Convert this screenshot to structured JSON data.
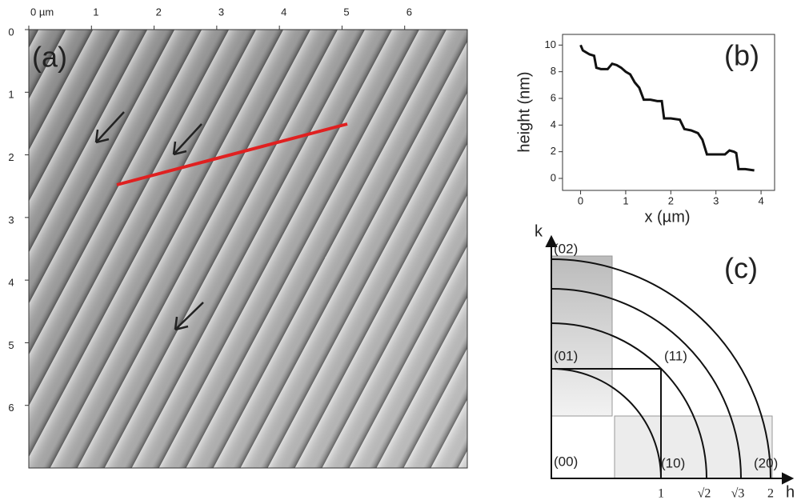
{
  "chart_data": [
    {
      "type": "image",
      "label": "(a)",
      "xlim": [
        0,
        7
      ],
      "ylim": [
        0,
        7
      ],
      "y_reversed": true,
      "xticks": [
        {
          "value": 0,
          "label": "0 µm"
        },
        1,
        2,
        3,
        4,
        5,
        6
      ],
      "yticks": [
        0,
        1,
        2,
        3,
        4,
        5,
        6
      ]
    },
    {
      "type": "line",
      "label": "(b)",
      "xlabel": "x (µm)",
      "ylabel": "height (nm)",
      "color": "#111",
      "xlim": [
        -0.4,
        4.3
      ],
      "ylim": [
        -0.9,
        10.8
      ],
      "xticks": [
        0,
        1,
        2,
        3,
        4
      ],
      "yticks": [
        0,
        2,
        4,
        6,
        8,
        10
      ],
      "x": [
        0,
        0.05,
        0.1,
        0.2,
        0.3,
        0.35,
        0.45,
        0.6,
        0.7,
        0.8,
        0.9,
        1.0,
        1.1,
        1.2,
        1.3,
        1.4,
        1.55,
        1.7,
        1.8,
        1.85,
        2.0,
        2.2,
        2.3,
        2.45,
        2.6,
        2.7,
        2.8,
        3.0,
        3.2,
        3.3,
        3.4,
        3.45,
        3.5,
        3.65,
        3.85
      ],
      "values": [
        10,
        9.6,
        9.5,
        9.3,
        9.2,
        8.3,
        8.2,
        8.2,
        8.6,
        8.5,
        8.3,
        8.0,
        7.8,
        7.2,
        6.8,
        5.9,
        5.9,
        5.8,
        5.8,
        4.5,
        4.5,
        4.4,
        3.7,
        3.6,
        3.4,
        2.9,
        1.8,
        1.8,
        1.8,
        2.1,
        2.0,
        1.9,
        0.7,
        0.7,
        0.6
      ]
    }
  ],
  "diagram": {
    "label": "(c)",
    "k_axis": "k",
    "h_axis": "h",
    "spots": [
      "(02)",
      "(01)",
      "(11)",
      "(00)",
      "(10)",
      "(20)"
    ],
    "h_ticks": [
      "1",
      "√2",
      "√3",
      "2"
    ]
  }
}
